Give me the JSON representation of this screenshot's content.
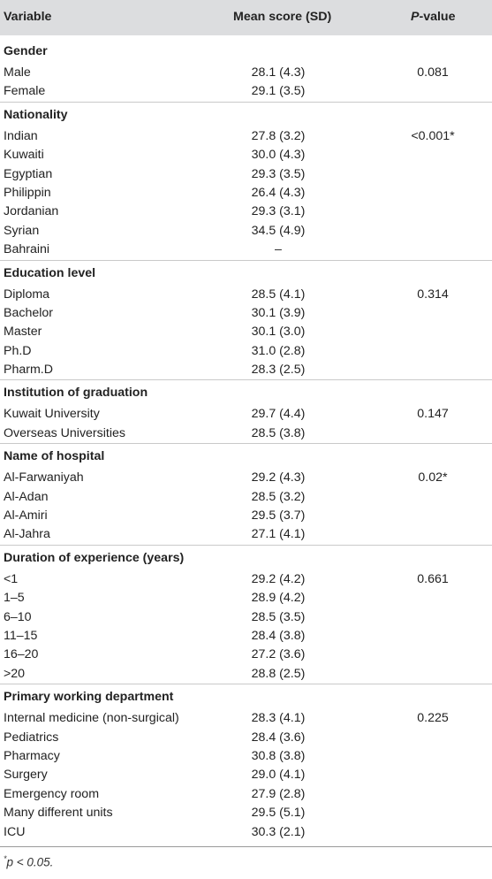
{
  "header": {
    "variable": "Variable",
    "mean": "Mean score (SD)",
    "pvalue_letter": "P",
    "pvalue_rest": "-value"
  },
  "groups": [
    {
      "title": "Gender",
      "rows": [
        {
          "label": "Male",
          "mean": "28.1 (4.3)",
          "p": "0.081"
        },
        {
          "label": "Female",
          "mean": "29.1 (3.5)",
          "p": ""
        }
      ]
    },
    {
      "title": "Nationality",
      "rows": [
        {
          "label": "Indian",
          "mean": "27.8 (3.2)",
          "p": "<0.001*"
        },
        {
          "label": "Kuwaiti",
          "mean": "30.0 (4.3)",
          "p": ""
        },
        {
          "label": "Egyptian",
          "mean": "29.3 (3.5)",
          "p": ""
        },
        {
          "label": "Philippin",
          "mean": "26.4 (4.3)",
          "p": ""
        },
        {
          "label": "Jordanian",
          "mean": "29.3 (3.1)",
          "p": ""
        },
        {
          "label": "Syrian",
          "mean": "34.5 (4.9)",
          "p": ""
        },
        {
          "label": "Bahraini",
          "mean": "–",
          "p": ""
        }
      ]
    },
    {
      "title": "Education level",
      "rows": [
        {
          "label": "Diploma",
          "mean": "28.5 (4.1)",
          "p": "0.314"
        },
        {
          "label": "Bachelor",
          "mean": "30.1 (3.9)",
          "p": ""
        },
        {
          "label": "Master",
          "mean": "30.1 (3.0)",
          "p": ""
        },
        {
          "label": "Ph.D",
          "mean": "31.0 (2.8)",
          "p": ""
        },
        {
          "label": "Pharm.D",
          "mean": "28.3 (2.5)",
          "p": ""
        }
      ]
    },
    {
      "title": "Institution of graduation",
      "rows": [
        {
          "label": "Kuwait University",
          "mean": "29.7 (4.4)",
          "p": "0.147"
        },
        {
          "label": "Overseas Universities",
          "mean": "28.5 (3.8)",
          "p": ""
        }
      ]
    },
    {
      "title": "Name of hospital",
      "rows": [
        {
          "label": "Al-Farwaniyah",
          "mean": "29.2 (4.3)",
          "p": "0.02*"
        },
        {
          "label": "Al-Adan",
          "mean": "28.5 (3.2)",
          "p": ""
        },
        {
          "label": "Al-Amiri",
          "mean": "29.5 (3.7)",
          "p": ""
        },
        {
          "label": "Al-Jahra",
          "mean": "27.1 (4.1)",
          "p": ""
        }
      ]
    },
    {
      "title": "Duration of experience (years)",
      "rows": [
        {
          "label": "<1",
          "mean": "29.2 (4.2)",
          "p": "0.661"
        },
        {
          "label": "1–5",
          "mean": "28.9 (4.2)",
          "p": ""
        },
        {
          "label": "6–10",
          "mean": "28.5 (3.5)",
          "p": ""
        },
        {
          "label": "11–15",
          "mean": "28.4 (3.8)",
          "p": ""
        },
        {
          "label": "16–20",
          "mean": "27.2 (3.6)",
          "p": ""
        },
        {
          "label": ">20",
          "mean": "28.8 (2.5)",
          "p": ""
        }
      ]
    },
    {
      "title": "Primary working department",
      "rows": [
        {
          "label": "Internal medicine (non-surgical)",
          "mean": "28.3 (4.1)",
          "p": "0.225"
        },
        {
          "label": "Pediatrics",
          "mean": "28.4 (3.6)",
          "p": ""
        },
        {
          "label": "Pharmacy",
          "mean": "30.8 (3.8)",
          "p": ""
        },
        {
          "label": "Surgery",
          "mean": "29.0 (4.1)",
          "p": ""
        },
        {
          "label": "Emergency room",
          "mean": "27.9 (2.8)",
          "p": ""
        },
        {
          "label": "Many different units",
          "mean": "29.5 (5.1)",
          "p": ""
        },
        {
          "label": "ICU",
          "mean": "30.3 (2.1)",
          "p": ""
        }
      ]
    }
  ],
  "footnote": {
    "marker": "*",
    "text": "p < 0.05."
  }
}
